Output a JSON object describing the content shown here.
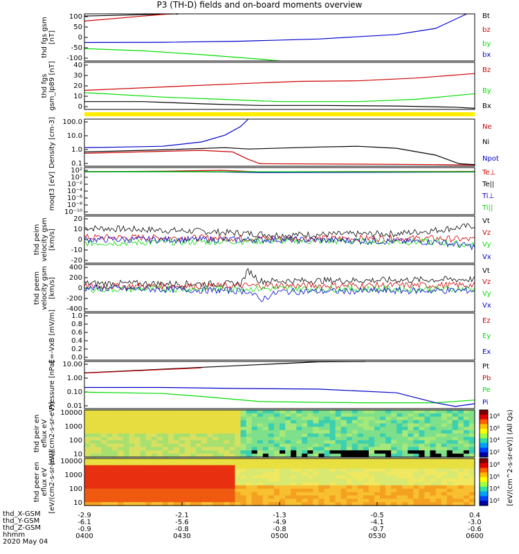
{
  "title": "P3 (TH-D) fields and on-board moments overview",
  "colors": {
    "black": "#000000",
    "red": "#cc0000",
    "green": "#00dd00",
    "blue": "#0000cc",
    "yellow": "#ffee00"
  },
  "colorbar": {
    "label": "[eV/(cm^2-s-sr-eV)] (All Qs)",
    "ticks": [
      "10⁸",
      "10⁶",
      "10⁴",
      "10²"
    ]
  },
  "x_axis": {
    "rows": [
      {
        "label": "thd_X-GSM",
        "values": [
          "-2.9",
          "-2.1",
          "-1.3",
          "-0.5",
          "0.4"
        ]
      },
      {
        "label": "thd_Y-GSM",
        "values": [
          "-6.1",
          "-5.6",
          "-4.9",
          "-4.1",
          "-3.0"
        ]
      },
      {
        "label": "thd_Z-GSM",
        "values": [
          "-0.9",
          "-0.8",
          "-0.8",
          "-0.7",
          "-0.6"
        ]
      },
      {
        "label": "hhmm",
        "values": [
          "0400",
          "0430",
          "0500",
          "0530",
          "0600"
        ]
      }
    ],
    "date": "2020 May 04"
  },
  "chart_data": [
    {
      "type": "line",
      "ylabel": "thd fgs gsm [nT]",
      "yticks": [
        "100",
        "50",
        "0",
        "-50",
        "-100"
      ],
      "ylim": [
        -100,
        110
      ],
      "legend": [
        "Bt",
        "bz",
        "by",
        "bx"
      ],
      "series": [
        {
          "name": "Bt",
          "color": "#000000",
          "points": [
            [
              0,
              100
            ],
            [
              0.24,
              112
            ]
          ]
        },
        {
          "name": "bz",
          "color": "#cc0000",
          "points": [
            [
              0,
              78
            ],
            [
              0.15,
              100
            ],
            [
              0.22,
              112
            ]
          ]
        },
        {
          "name": "by",
          "color": "#00dd00",
          "points": [
            [
              0,
              -45
            ],
            [
              0.15,
              -55
            ],
            [
              0.3,
              -72
            ],
            [
              0.45,
              -92
            ],
            [
              0.5,
              -100
            ]
          ]
        },
        {
          "name": "bx",
          "color": "#0000cc",
          "points": [
            [
              0,
              -18
            ],
            [
              0.2,
              -17
            ],
            [
              0.4,
              -12
            ],
            [
              0.6,
              -2
            ],
            [
              0.8,
              18
            ],
            [
              0.9,
              45
            ],
            [
              0.98,
              110
            ]
          ]
        }
      ]
    },
    {
      "type": "line",
      "ylabel": "thd fgs gsm_lp89 [nT]",
      "yticks": [
        "40",
        "30",
        "20",
        "10",
        "0"
      ],
      "ylim": [
        -2,
        40
      ],
      "legend": [
        "Bz",
        "By",
        "Bx"
      ],
      "series": [
        {
          "name": "Bz",
          "color": "#cc0000",
          "points": [
            [
              0,
              15
            ],
            [
              0.2,
              18
            ],
            [
              0.4,
              21
            ],
            [
              0.55,
              23
            ],
            [
              0.7,
              23.5
            ],
            [
              0.85,
              26
            ],
            [
              1.0,
              30
            ]
          ]
        },
        {
          "name": "By",
          "color": "#00dd00",
          "points": [
            [
              0,
              13
            ],
            [
              0.2,
              9
            ],
            [
              0.35,
              7
            ],
            [
              0.5,
              5
            ],
            [
              0.7,
              5
            ],
            [
              0.85,
              7
            ],
            [
              1.0,
              12
            ]
          ]
        },
        {
          "name": "Bx",
          "color": "#000000",
          "points": [
            [
              0,
              5
            ],
            [
              0.15,
              5
            ],
            [
              0.3,
              3
            ],
            [
              0.45,
              1.5
            ],
            [
              0.6,
              1.5
            ],
            [
              0.8,
              1
            ],
            [
              0.95,
              0
            ],
            [
              1.0,
              -1
            ]
          ]
        }
      ]
    },
    {
      "type": "line",
      "ylabel": "Density [cm-3]",
      "scale": "log",
      "yticks": [
        "100.0",
        "10.0",
        "1.0",
        "0.1"
      ],
      "ylim": [
        0.1,
        200
      ],
      "legend": [
        "Ne",
        "Ni",
        "Npot"
      ],
      "series": [
        {
          "name": "Ne",
          "color": "#cc0000",
          "points": [
            [
              0,
              0.8
            ],
            [
              0.2,
              1.1
            ],
            [
              0.3,
              1.3
            ],
            [
              0.38,
              1.0
            ],
            [
              0.42,
              0.3
            ],
            [
              0.45,
              0.15
            ],
            [
              0.7,
              0.14
            ],
            [
              0.9,
              0.13
            ],
            [
              1.0,
              0.12
            ]
          ]
        },
        {
          "name": "Ni",
          "color": "#000000",
          "points": [
            [
              0,
              1.0
            ],
            [
              0.2,
              1.4
            ],
            [
              0.36,
              2.0
            ],
            [
              0.42,
              1.6
            ],
            [
              0.6,
              2.2
            ],
            [
              0.7,
              2.5
            ],
            [
              0.8,
              1.8
            ],
            [
              0.9,
              0.6
            ],
            [
              0.96,
              0.15
            ],
            [
              1.0,
              0.13
            ]
          ]
        },
        {
          "name": "Npot",
          "color": "#0000cc",
          "points": [
            [
              0,
              2
            ],
            [
              0.1,
              2.2
            ],
            [
              0.2,
              2.5
            ],
            [
              0.3,
              5
            ],
            [
              0.36,
              15
            ],
            [
              0.4,
              60
            ],
            [
              0.42,
              200
            ]
          ]
        }
      ]
    },
    {
      "type": "line",
      "ylabel": "moqt3 [eV]",
      "scale": "log",
      "yticks": [
        "10²",
        "10¹",
        "10⁻²",
        "10⁻⁴",
        "10⁻⁶",
        "10⁻⁸",
        "10⁻¹⁰"
      ],
      "legend": [
        "Te⊥",
        "Te||",
        "Ti⊥",
        "Ti||"
      ],
      "series": [
        {
          "name": "Te⊥",
          "color": "#cc0000",
          "points": [
            [
              0,
              1.0
            ],
            [
              0.2,
              1.5
            ],
            [
              0.35,
              3.2
            ],
            [
              0.45,
              0.9
            ],
            [
              0.7,
              1.2
            ],
            [
              1.0,
              1.3
            ]
          ]
        },
        {
          "name": "Te||",
          "color": "#000000",
          "points": [
            [
              0,
              1.2
            ],
            [
              0.2,
              1.3
            ],
            [
              0.4,
              0.8
            ],
            [
              0.6,
              0.9
            ],
            [
              1.0,
              1.0
            ]
          ]
        },
        {
          "name": "Ti⊥",
          "color": "#0000cc",
          "points": [
            [
              0,
              0.9
            ],
            [
              0.3,
              1.0
            ],
            [
              0.45,
              0.5
            ],
            [
              0.7,
              0.6
            ],
            [
              1.0,
              0.8
            ]
          ]
        },
        {
          "name": "Ti||",
          "color": "#00dd00",
          "points": [
            [
              0,
              1.0
            ],
            [
              1.0,
              1.0
            ]
          ]
        }
      ]
    },
    {
      "type": "line",
      "ylabel": "thd peim velocity gsm [km/s]",
      "yticks": [
        "20",
        "10",
        "0",
        "-10",
        "-20"
      ],
      "ylim": [
        -20,
        20
      ],
      "legend": [
        "Vt",
        "Vz",
        "Vy",
        "Vx"
      ],
      "noisy": true,
      "series": [
        {
          "name": "Vt",
          "color": "#000000",
          "points": [
            [
              0,
              10
            ],
            [
              0.3,
              7
            ],
            [
              0.5,
              4
            ],
            [
              0.8,
              5
            ],
            [
              0.9,
              8
            ],
            [
              1.0,
              12
            ]
          ]
        },
        {
          "name": "Vz",
          "color": "#cc0000",
          "points": [
            [
              0,
              2
            ],
            [
              0.5,
              1
            ],
            [
              0.9,
              1
            ],
            [
              1.0,
              0
            ]
          ]
        },
        {
          "name": "Vy",
          "color": "#00dd00",
          "points": [
            [
              0,
              -3
            ],
            [
              0.5,
              -1
            ],
            [
              0.9,
              -2
            ],
            [
              1.0,
              -5
            ]
          ]
        },
        {
          "name": "Vx",
          "color": "#0000cc",
          "points": [
            [
              0,
              0
            ],
            [
              0.5,
              0
            ],
            [
              0.9,
              -2
            ],
            [
              1.0,
              -6
            ]
          ]
        }
      ]
    },
    {
      "type": "line",
      "ylabel": "thd peem velocity gsm [km/s]",
      "yticks": [
        "400",
        "200",
        "0",
        "-200",
        "-400"
      ],
      "ylim": [
        -400,
        400
      ],
      "legend": [
        "Vt",
        "Vz",
        "Vy",
        "Vx"
      ],
      "noisy": true,
      "series": [
        {
          "name": "Vt",
          "color": "#000000",
          "points": [
            [
              0,
              80
            ],
            [
              0.4,
              70
            ],
            [
              0.42,
              300
            ],
            [
              0.45,
              120
            ],
            [
              0.7,
              130
            ],
            [
              1.0,
              150
            ]
          ]
        },
        {
          "name": "Vz",
          "color": "#cc0000",
          "points": [
            [
              0,
              30
            ],
            [
              0.45,
              40
            ],
            [
              1.0,
              50
            ]
          ]
        },
        {
          "name": "Vy",
          "color": "#00dd00",
          "points": [
            [
              0,
              -20
            ],
            [
              0.5,
              -10
            ],
            [
              1.0,
              -20
            ]
          ]
        },
        {
          "name": "Vx",
          "color": "#0000cc",
          "points": [
            [
              0,
              0
            ],
            [
              0.42,
              -50
            ],
            [
              0.45,
              -200
            ],
            [
              0.5,
              -60
            ],
            [
              1.0,
              -40
            ]
          ]
        }
      ]
    },
    {
      "type": "line",
      "ylabel": "E=-VxB [mV/m]",
      "yticks": [
        "1.0",
        "0.8",
        "0.6",
        "0.4",
        "0.2",
        "0.0"
      ],
      "ylim": [
        0,
        1
      ],
      "legend": [
        "Ez",
        "Ey",
        "Ex"
      ],
      "series": []
    },
    {
      "type": "line",
      "ylabel": "Pressure [nPa]",
      "scale": "log",
      "yticks": [
        "10.00",
        "1.00",
        "0.10",
        "0.01"
      ],
      "ylim": [
        0.004,
        30
      ],
      "legend": [
        "Pt",
        "Pb",
        "Pe",
        "Pi"
      ],
      "series": [
        {
          "name": "Pt",
          "color": "#000000",
          "points": [
            [
              0,
              3.5
            ],
            [
              0.2,
              7
            ],
            [
              0.4,
              14
            ],
            [
              0.6,
              28
            ],
            [
              0.72,
              40
            ]
          ]
        },
        {
          "name": "Pb",
          "color": "#cc0000",
          "points": [
            [
              0,
              3.3
            ],
            [
              0.2,
              6.5
            ],
            [
              0.3,
              9
            ]
          ]
        },
        {
          "name": "Pe",
          "color": "#00dd00",
          "points": [
            [
              0,
              0.09
            ],
            [
              0.2,
              0.07
            ],
            [
              0.3,
              0.04
            ],
            [
              0.45,
              0.015
            ],
            [
              0.7,
              0.012
            ],
            [
              0.9,
              0.012
            ],
            [
              1.0,
              0.02
            ]
          ]
        },
        {
          "name": "Pi",
          "color": "#0000cc",
          "points": [
            [
              0,
              0.22
            ],
            [
              0.2,
              0.22
            ],
            [
              0.4,
              0.18
            ],
            [
              0.6,
              0.16
            ],
            [
              0.8,
              0.08
            ],
            [
              0.9,
              0.012
            ],
            [
              0.95,
              0.006
            ],
            [
              1.0,
              0.01
            ]
          ]
        }
      ]
    },
    {
      "type": "heatmap",
      "ylabel": "thd peir en eflux eV [eV/(cm2-s-sr-eV)]",
      "yticks": [
        "10000",
        "1000",
        "100",
        "10"
      ]
    },
    {
      "type": "heatmap",
      "ylabel": "thd peer en eflux eV [eV/(cm2-s-sr-eV)]",
      "yticks": [
        "10000",
        "1000",
        "100",
        "10"
      ]
    }
  ]
}
